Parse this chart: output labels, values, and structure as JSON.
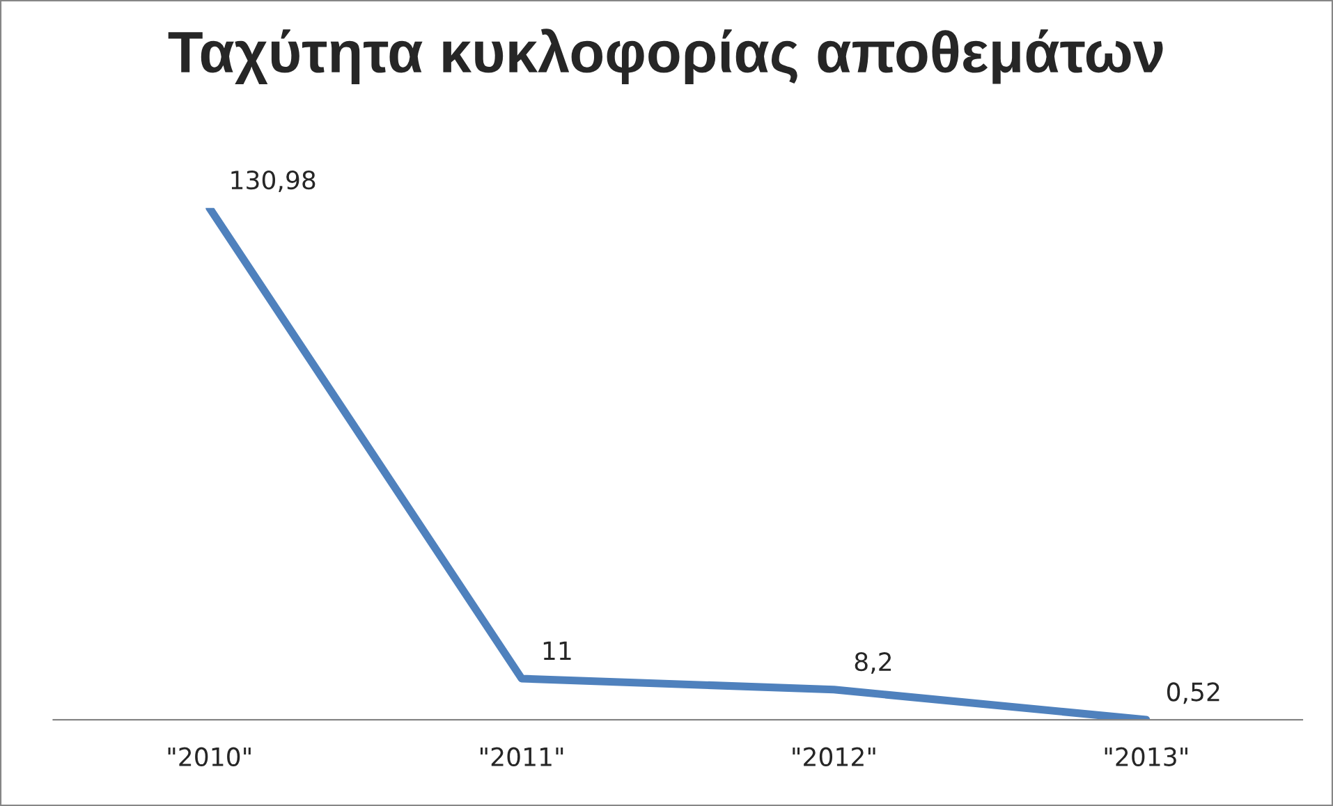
{
  "chart_data": {
    "type": "line",
    "title": "Ταχύτητα κυκλοφορίας αποθεμάτων",
    "categories": [
      "\"2010\"",
      "\"2011\"",
      "\"2012\"",
      "\"2013\""
    ],
    "series": [
      {
        "color": "#4f81bd",
        "values": [
          130.98,
          11,
          8.2,
          0.52
        ],
        "value_labels": [
          "130,98",
          "11",
          "8,2",
          "0,52"
        ]
      }
    ],
    "tick_labels": "x",
    "grid": false,
    "marker": "none",
    "line_style": "solid"
  }
}
